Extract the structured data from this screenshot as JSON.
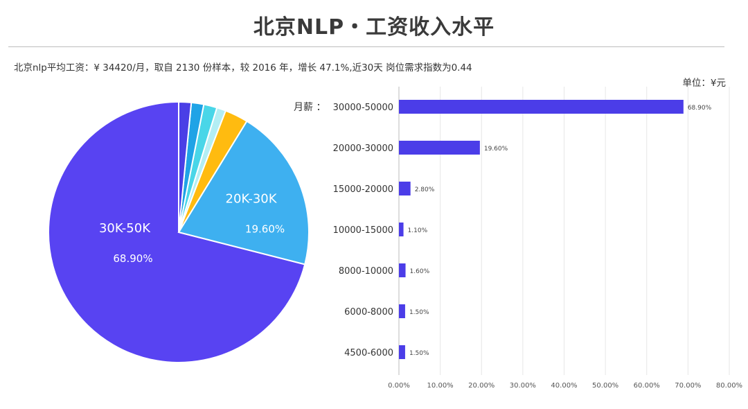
{
  "title": "北京NLP・工资收入水平",
  "summary": "北京nlp平均工资：¥ 34420/月，取自 2130 份样本，较 2016 年，增长 47.1%,近30天 岗位需求指数为0.44",
  "unit_label": "单位：¥元",
  "chart_data": [
    {
      "type": "pie",
      "slices": [
        {
          "label": "30K-50K",
          "value": 68.9,
          "display_value": "68.90%",
          "color": "#5843f2"
        },
        {
          "label": "20K-30K",
          "value": 19.6,
          "display_value": "19.60%",
          "color": "#3eb0f0"
        },
        {
          "label": "",
          "value": 2.8,
          "color": "#ffbb10"
        },
        {
          "label": "",
          "value": 1.1,
          "color": "#b3eef4"
        },
        {
          "label": "",
          "value": 1.6,
          "color": "#49d6e8"
        },
        {
          "label": "",
          "value": 1.5,
          "color": "#1fa3e6"
        },
        {
          "label": "",
          "value": 1.5,
          "color": "#4a3fe6"
        }
      ]
    },
    {
      "type": "bar",
      "orientation": "horizontal",
      "axis_prefix": "月薪 ：",
      "categories": [
        "30000-50000",
        "20000-30000",
        "15000-20000",
        "10000-15000",
        "8000-10000",
        "6000-8000",
        "4500-6000"
      ],
      "values": [
        68.9,
        19.6,
        2.8,
        1.1,
        1.6,
        1.5,
        1.5
      ],
      "value_labels": [
        "68.90%",
        "19.60%",
        "2.80%",
        "1.10%",
        "1.60%",
        "1.50%",
        "1.50%"
      ],
      "xlim": [
        0,
        80
      ],
      "x_ticks": [
        "0.00%",
        "10.00%",
        "20.00%",
        "30.00%",
        "40.00%",
        "50.00%",
        "60.00%",
        "70.00%",
        "80.00%"
      ],
      "bar_color": "#4b3de8",
      "grid": true
    }
  ]
}
